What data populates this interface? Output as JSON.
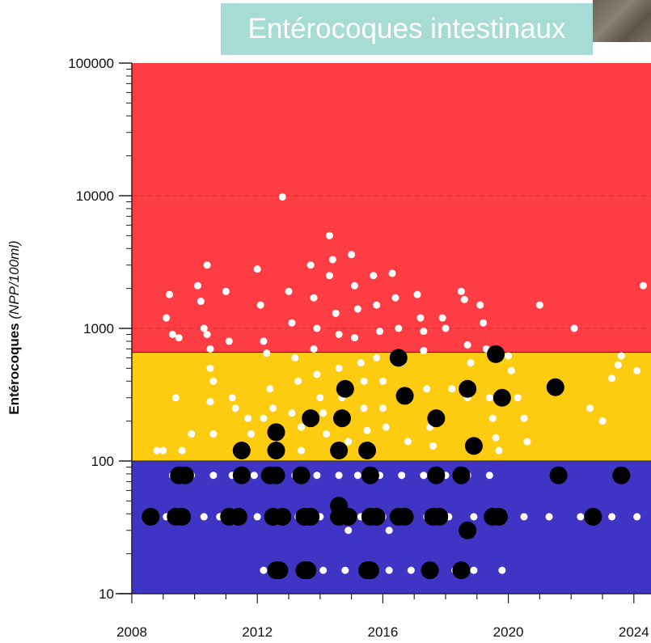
{
  "title": "Entérocoques intestinaux",
  "chart_data": {
    "type": "scatter",
    "title": "Entérocoques intestinaux",
    "ylabel": "Entérocoques",
    "ylabel_unit": "(NPP/100ml)",
    "xlabel": "",
    "yscale": "log",
    "ylim": [
      10,
      100000
    ],
    "xlim": [
      2008,
      2024.4
    ],
    "x_ticks": [
      "2008",
      "2012",
      "2016",
      "2020",
      "2024"
    ],
    "y_ticks": [
      "10",
      "100",
      "1000",
      "10000",
      "100000"
    ],
    "bands": [
      {
        "from": 10,
        "to": 100,
        "color": "#3f34c4"
      },
      {
        "from": 100,
        "to": 660,
        "color": "#fdcb10"
      },
      {
        "from": 660,
        "to": 100000,
        "color": "#fd3d43"
      }
    ],
    "series": [
      {
        "color": "#ffffff",
        "marker": "small",
        "points": [
          [
            2008.8,
            120
          ],
          [
            2009,
            120
          ],
          [
            2009.1,
            1200
          ],
          [
            2009.2,
            1800
          ],
          [
            2009.3,
            900
          ],
          [
            2009.5,
            850
          ],
          [
            2009.4,
            300
          ],
          [
            2009.6,
            120
          ],
          [
            2009.9,
            160
          ],
          [
            2010.1,
            2100
          ],
          [
            2010.2,
            1600
          ],
          [
            2010.3,
            1000
          ],
          [
            2010.4,
            3000
          ],
          [
            2010.4,
            900
          ],
          [
            2010.5,
            700
          ],
          [
            2010.5,
            500
          ],
          [
            2010.6,
            400
          ],
          [
            2010.5,
            280
          ],
          [
            2010.6,
            160
          ],
          [
            2011,
            1900
          ],
          [
            2011.1,
            800
          ],
          [
            2011.2,
            300
          ],
          [
            2011.3,
            250
          ],
          [
            2011.4,
            120
          ],
          [
            2011.7,
            210
          ],
          [
            2011.8,
            160
          ],
          [
            2012,
            2800
          ],
          [
            2012.1,
            1500
          ],
          [
            2012.2,
            800
          ],
          [
            2012.3,
            650
          ],
          [
            2012.4,
            350
          ],
          [
            2012.5,
            250
          ],
          [
            2012.2,
            210
          ],
          [
            2012.8,
            9800
          ],
          [
            2013,
            1900
          ],
          [
            2013.1,
            1100
          ],
          [
            2013.2,
            600
          ],
          [
            2013.3,
            400
          ],
          [
            2013.1,
            230
          ],
          [
            2013.4,
            180
          ],
          [
            2013.4,
            120
          ],
          [
            2013.7,
            3000
          ],
          [
            2013.8,
            1700
          ],
          [
            2013.9,
            1000
          ],
          [
            2013.8,
            700
          ],
          [
            2013.9,
            450
          ],
          [
            2014,
            300
          ],
          [
            2014.1,
            230
          ],
          [
            2014.2,
            160
          ],
          [
            2014.3,
            5000
          ],
          [
            2014.4,
            3300
          ],
          [
            2014.3,
            2500
          ],
          [
            2014.5,
            1300
          ],
          [
            2014.6,
            900
          ],
          [
            2014.6,
            500
          ],
          [
            2014.7,
            300
          ],
          [
            2014.8,
            200
          ],
          [
            2014.9,
            140
          ],
          [
            2015,
            3600
          ],
          [
            2015.1,
            2100
          ],
          [
            2015.2,
            1400
          ],
          [
            2015.1,
            850
          ],
          [
            2015.3,
            550
          ],
          [
            2015.4,
            400
          ],
          [
            2015.4,
            250
          ],
          [
            2015.5,
            170
          ],
          [
            2015.7,
            2500
          ],
          [
            2015.8,
            1500
          ],
          [
            2015.9,
            950
          ],
          [
            2015.8,
            600
          ],
          [
            2016,
            400
          ],
          [
            2016,
            250
          ],
          [
            2016.1,
            180
          ],
          [
            2016.3,
            2600
          ],
          [
            2016.4,
            1700
          ],
          [
            2016.5,
            1000
          ],
          [
            2016.6,
            550
          ],
          [
            2016.7,
            300
          ],
          [
            2016.8,
            140
          ],
          [
            2017.1,
            1800
          ],
          [
            2017.2,
            1200
          ],
          [
            2017.3,
            950
          ],
          [
            2017.3,
            680
          ],
          [
            2017.4,
            350
          ],
          [
            2017.5,
            180
          ],
          [
            2017.6,
            130
          ],
          [
            2017.9,
            1200
          ],
          [
            2018,
            1000
          ],
          [
            2018.2,
            350
          ],
          [
            2018.5,
            1900
          ],
          [
            2018.6,
            1650
          ],
          [
            2018.7,
            750
          ],
          [
            2018.8,
            550
          ],
          [
            2018.7,
            300
          ],
          [
            2019.1,
            1500
          ],
          [
            2019.2,
            1100
          ],
          [
            2019.3,
            700
          ],
          [
            2019.4,
            300
          ],
          [
            2019.5,
            210
          ],
          [
            2019.6,
            150
          ],
          [
            2019.7,
            120
          ],
          [
            2020,
            620
          ],
          [
            2020.1,
            480
          ],
          [
            2020.3,
            300
          ],
          [
            2020.5,
            210
          ],
          [
            2020.6,
            140
          ],
          [
            2021,
            1500
          ],
          [
            2022.1,
            1000
          ],
          [
            2022.6,
            250
          ],
          [
            2023,
            200
          ],
          [
            2023.3,
            420
          ],
          [
            2023.5,
            530
          ],
          [
            2023.6,
            620
          ],
          [
            2024.1,
            480
          ],
          [
            2024.3,
            2100
          ],
          [
            2009.3,
            78
          ],
          [
            2009.9,
            78
          ],
          [
            2010.6,
            78
          ],
          [
            2011.2,
            78
          ],
          [
            2011.9,
            78
          ],
          [
            2012.5,
            78
          ],
          [
            2013.2,
            78
          ],
          [
            2013.9,
            78
          ],
          [
            2014.6,
            78
          ],
          [
            2015.2,
            78
          ],
          [
            2015.9,
            78
          ],
          [
            2016.6,
            78
          ],
          [
            2017.3,
            78
          ],
          [
            2018,
            78
          ],
          [
            2018.7,
            78
          ],
          [
            2019.4,
            78
          ],
          [
            2009.1,
            38
          ],
          [
            2009.7,
            38
          ],
          [
            2010.3,
            38
          ],
          [
            2010.8,
            38
          ],
          [
            2011.3,
            38
          ],
          [
            2012,
            38
          ],
          [
            2012.6,
            38
          ],
          [
            2013.3,
            38
          ],
          [
            2014,
            38
          ],
          [
            2014.6,
            38
          ],
          [
            2015.3,
            38
          ],
          [
            2016,
            38
          ],
          [
            2016.7,
            38
          ],
          [
            2017.4,
            38
          ],
          [
            2018.1,
            38
          ],
          [
            2018.9,
            38
          ],
          [
            2019.6,
            38
          ],
          [
            2020.5,
            38
          ],
          [
            2021.3,
            38
          ],
          [
            2022.3,
            38
          ],
          [
            2023.3,
            38
          ],
          [
            2024.1,
            38
          ],
          [
            2014.9,
            30
          ],
          [
            2016.2,
            30
          ],
          [
            2012.2,
            15
          ],
          [
            2012.8,
            15
          ],
          [
            2013.4,
            15
          ],
          [
            2014.1,
            15
          ],
          [
            2014.8,
            15
          ],
          [
            2015.5,
            15
          ],
          [
            2016.2,
            15
          ],
          [
            2016.9,
            15
          ],
          [
            2017.6,
            15
          ],
          [
            2018.3,
            15
          ],
          [
            2018.9,
            15
          ],
          [
            2019.8,
            15
          ]
        ]
      },
      {
        "color": "#000000",
        "marker": "large",
        "points": [
          [
            2008.6,
            38
          ],
          [
            2009.4,
            38
          ],
          [
            2009.6,
            38
          ],
          [
            2009.5,
            78
          ],
          [
            2009.7,
            78
          ],
          [
            2011.1,
            38
          ],
          [
            2011.4,
            38
          ],
          [
            2011.5,
            78
          ],
          [
            2012.4,
            78
          ],
          [
            2012.6,
            78
          ],
          [
            2012.5,
            38
          ],
          [
            2012.8,
            38
          ],
          [
            2013.4,
            78
          ],
          [
            2013.5,
            38
          ],
          [
            2013.7,
            38
          ],
          [
            2014.6,
            38
          ],
          [
            2014.9,
            38
          ],
          [
            2015.6,
            38
          ],
          [
            2015.8,
            38
          ],
          [
            2015.6,
            78
          ],
          [
            2016.5,
            38
          ],
          [
            2016.7,
            38
          ],
          [
            2017.6,
            38
          ],
          [
            2017.8,
            38
          ],
          [
            2017.7,
            78
          ],
          [
            2018.5,
            78
          ],
          [
            2019.5,
            38
          ],
          [
            2019.7,
            38
          ],
          [
            2021.6,
            78
          ],
          [
            2022.7,
            38
          ],
          [
            2023.6,
            78
          ],
          [
            2012.6,
            15
          ],
          [
            2012.7,
            15
          ],
          [
            2013.5,
            15
          ],
          [
            2013.6,
            15
          ],
          [
            2015.5,
            15
          ],
          [
            2015.6,
            15
          ],
          [
            2017.5,
            15
          ],
          [
            2018.5,
            15
          ],
          [
            2014.6,
            46
          ],
          [
            2018.7,
            30
          ],
          [
            2011.5,
            120
          ],
          [
            2012.6,
            120
          ],
          [
            2012.6,
            165
          ],
          [
            2013.7,
            210
          ],
          [
            2014.6,
            120
          ],
          [
            2014.7,
            210
          ],
          [
            2014.8,
            350
          ],
          [
            2015.5,
            120
          ],
          [
            2016.5,
            600
          ],
          [
            2016.7,
            310
          ],
          [
            2017.7,
            210
          ],
          [
            2018.7,
            350
          ],
          [
            2018.9,
            130
          ],
          [
            2019.6,
            640
          ],
          [
            2019.8,
            300
          ],
          [
            2021.5,
            360
          ]
        ]
      }
    ]
  }
}
